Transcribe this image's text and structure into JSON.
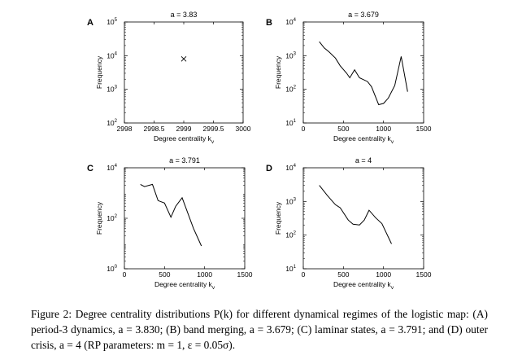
{
  "chart_data": [
    {
      "panel": "A",
      "type": "scatter",
      "title": "a = 3.83",
      "xlabel": "Degree centrality k",
      "xlabel_sub": "v",
      "ylabel": "Frequency",
      "xlim": [
        2998,
        3000
      ],
      "ylim_exp": [
        2,
        5
      ],
      "yscale": "log",
      "xticks": [
        "2998",
        "2998.5",
        "2999",
        "2999.5",
        "3000"
      ],
      "yticks": [
        {
          "base": "10",
          "exp": "2"
        },
        {
          "base": "10",
          "exp": "3"
        },
        {
          "base": "10",
          "exp": "4"
        },
        {
          "base": "10",
          "exp": "5"
        }
      ],
      "marker": "x",
      "points": [
        {
          "x": 2999,
          "y": 8000
        }
      ]
    },
    {
      "panel": "B",
      "type": "line",
      "title": "a = 3.679",
      "xlabel": "Degree centrality k",
      "xlabel_sub": "v",
      "ylabel": "Frequency",
      "xlim": [
        0,
        1500
      ],
      "ylim_exp": [
        1,
        4
      ],
      "yscale": "log",
      "xticks": [
        "0",
        "500",
        "1000",
        "1500"
      ],
      "yticks": [
        {
          "base": "10",
          "exp": "1"
        },
        {
          "base": "10",
          "exp": "2"
        },
        {
          "base": "10",
          "exp": "3"
        },
        {
          "base": "10",
          "exp": "4"
        }
      ],
      "points": [
        {
          "x": 200,
          "y": 2600
        },
        {
          "x": 260,
          "y": 1700
        },
        {
          "x": 320,
          "y": 1300
        },
        {
          "x": 400,
          "y": 850
        },
        {
          "x": 460,
          "y": 500
        },
        {
          "x": 540,
          "y": 300
        },
        {
          "x": 580,
          "y": 220
        },
        {
          "x": 640,
          "y": 380
        },
        {
          "x": 700,
          "y": 220
        },
        {
          "x": 800,
          "y": 170
        },
        {
          "x": 850,
          "y": 120
        },
        {
          "x": 940,
          "y": 35
        },
        {
          "x": 1000,
          "y": 38
        },
        {
          "x": 1060,
          "y": 55
        },
        {
          "x": 1140,
          "y": 130
        },
        {
          "x": 1220,
          "y": 950
        },
        {
          "x": 1300,
          "y": 85
        }
      ]
    },
    {
      "panel": "C",
      "type": "line",
      "title": "a = 3.791",
      "xlabel": "Degree centrality k",
      "xlabel_sub": "v",
      "ylabel": "Frequency",
      "xlim": [
        0,
        1500
      ],
      "ylim_exp": [
        0,
        4
      ],
      "yscale": "log",
      "xticks": [
        "0",
        "500",
        "1000",
        "1500"
      ],
      "yticks": [
        {
          "base": "10",
          "exp": "0"
        },
        {
          "base": "10",
          "exp": "2"
        },
        {
          "base": "10",
          "exp": "4"
        }
      ],
      "points": [
        {
          "x": 200,
          "y": 2200
        },
        {
          "x": 250,
          "y": 1800
        },
        {
          "x": 350,
          "y": 2200
        },
        {
          "x": 420,
          "y": 500
        },
        {
          "x": 500,
          "y": 400
        },
        {
          "x": 580,
          "y": 110
        },
        {
          "x": 640,
          "y": 300
        },
        {
          "x": 720,
          "y": 650
        },
        {
          "x": 860,
          "y": 40
        },
        {
          "x": 960,
          "y": 8
        }
      ]
    },
    {
      "panel": "D",
      "type": "line",
      "title": "a = 4",
      "xlabel": "Degree centrality k",
      "xlabel_sub": "v",
      "ylabel": "Frequency",
      "xlim": [
        0,
        1500
      ],
      "ylim_exp": [
        1,
        4
      ],
      "yscale": "log",
      "xticks": [
        "0",
        "500",
        "1000",
        "1500"
      ],
      "yticks": [
        {
          "base": "10",
          "exp": "1"
        },
        {
          "base": "10",
          "exp": "2"
        },
        {
          "base": "10",
          "exp": "3"
        },
        {
          "base": "10",
          "exp": "4"
        }
      ],
      "points": [
        {
          "x": 200,
          "y": 3000
        },
        {
          "x": 300,
          "y": 1500
        },
        {
          "x": 400,
          "y": 800
        },
        {
          "x": 460,
          "y": 650
        },
        {
          "x": 560,
          "y": 280
        },
        {
          "x": 620,
          "y": 210
        },
        {
          "x": 700,
          "y": 200
        },
        {
          "x": 760,
          "y": 280
        },
        {
          "x": 820,
          "y": 550
        },
        {
          "x": 900,
          "y": 330
        },
        {
          "x": 980,
          "y": 220
        },
        {
          "x": 1100,
          "y": 55
        }
      ]
    }
  ],
  "caption": "Figure 2: Degree centrality distributions P(k) for different dynamical regimes of the logistic map: (A) period-3 dynamics, a = 3.830; (B) band merging, a = 3.679; (C) laminar states, a = 3.791; and (D) outer crisis, a = 4 (RP parameters: m = 1, ε = 0.05σ)."
}
